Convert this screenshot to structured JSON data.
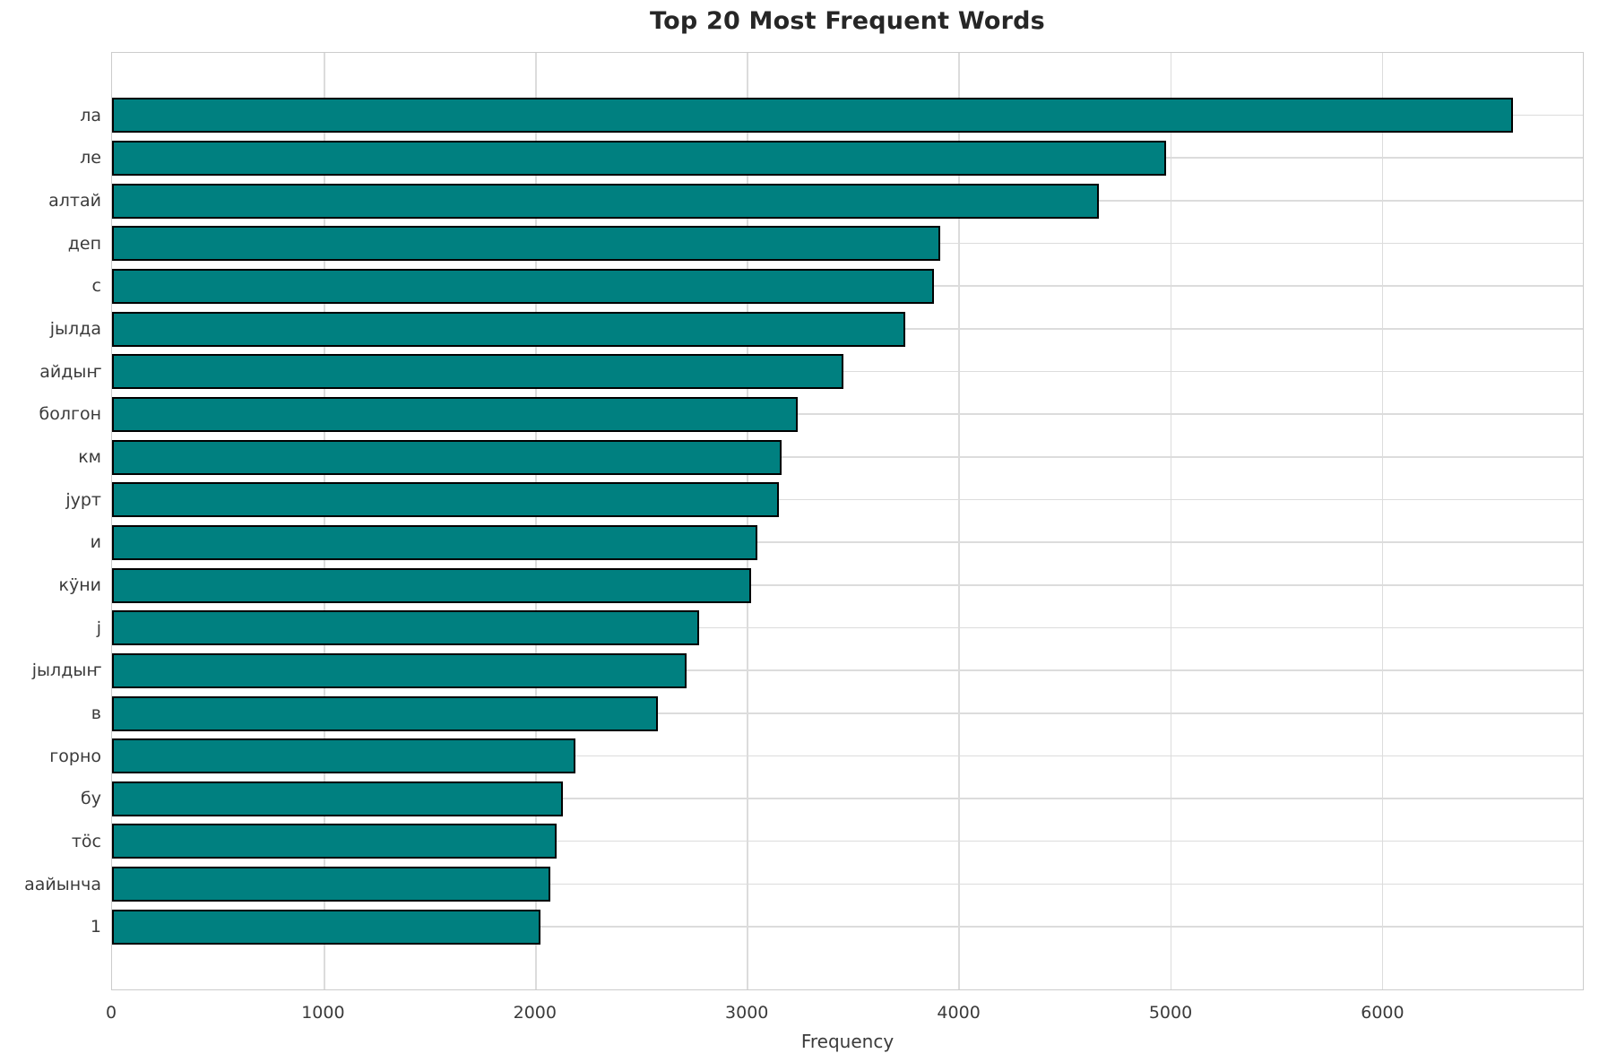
{
  "title": "Top 20 Most Frequent Words",
  "chart_data": {
    "type": "bar",
    "orientation": "horizontal",
    "title": "Top 20 Most Frequent Words",
    "xlabel": "Frequency",
    "ylabel": "",
    "categories": [
      "ла",
      "ле",
      "алтай",
      "деп",
      "с",
      "јылда",
      "айдыҥ",
      "болгон",
      "км",
      "јурт",
      "и",
      "кӱни",
      "ј",
      "јылдыҥ",
      "в",
      "горно",
      "бу",
      "тӧс",
      "аайынча",
      "1"
    ],
    "values": [
      6620,
      4980,
      4665,
      3915,
      3885,
      3750,
      3455,
      3240,
      3165,
      3150,
      3050,
      3020,
      2775,
      2715,
      2580,
      2190,
      2130,
      2100,
      2070,
      2025
    ],
    "xlim": [
      0,
      6950
    ],
    "xticks": [
      0,
      1000,
      2000,
      3000,
      4000,
      5000,
      6000
    ],
    "grid": true,
    "legend": false,
    "bar_color": "#008080",
    "bar_edge_color": "#000000",
    "grid_color": "#dcdcdc",
    "text_color": "#3b3b3b",
    "title_color": "#262626"
  }
}
